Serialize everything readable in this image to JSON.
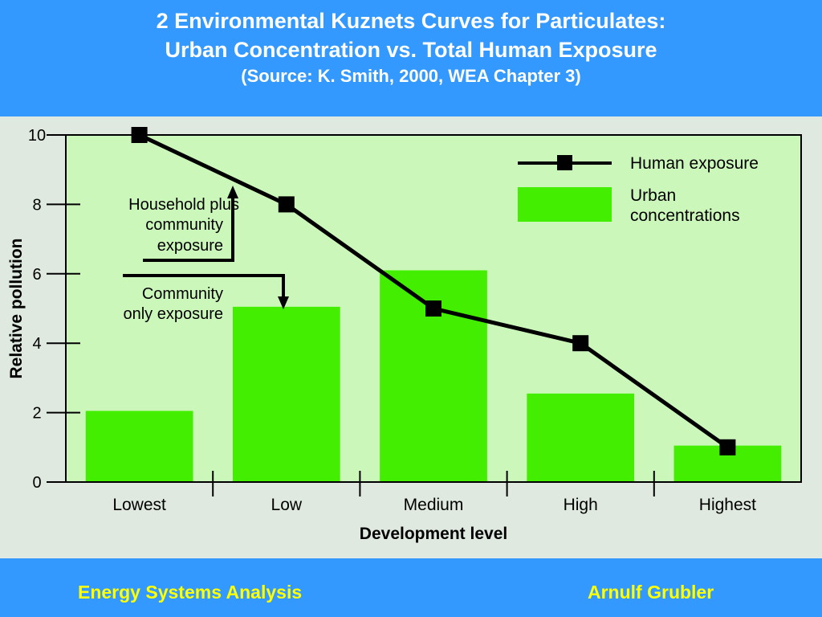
{
  "header": {
    "title_line1": "2 Environmental Kuznets Curves for Particulates:",
    "title_line2": "Urban Concentration vs. Total Human Exposure",
    "source": "(Source: K. Smith, 2000, WEA Chapter 3)"
  },
  "footer": {
    "left": "Energy Systems Analysis",
    "right": "Arnulf Grubler"
  },
  "colors": {
    "header_bg": "#3399ff",
    "plot_bg": "#ccf7bb",
    "bar_fill": "#44ee00",
    "line": "#000000",
    "footer_text": "#ffff00"
  },
  "chart_data": {
    "type": "bar",
    "categories": [
      "Lowest",
      "Low",
      "Medium",
      "High",
      "Highest"
    ],
    "series": [
      {
        "name": "Urban concentrations",
        "type": "bar",
        "values": [
          2.05,
          5.05,
          6.1,
          2.55,
          1.05
        ]
      },
      {
        "name": "Human exposure",
        "type": "line",
        "values": [
          10,
          8,
          5,
          4,
          1
        ]
      }
    ],
    "xlabel": "Development level",
    "ylabel": "Relative pollution",
    "ylim": [
      0,
      10
    ],
    "yticks": [
      "0",
      "2",
      "4",
      "6",
      "8",
      "10"
    ],
    "grid": false,
    "legend": {
      "placement": "top-right",
      "line_label": "Human exposure",
      "bar_label_line1": "Urban",
      "bar_label_line2": "concentrations"
    },
    "annotations": {
      "household_line1": "Household plus",
      "household_line2": "community",
      "household_line3": "exposure",
      "community_line1": "Community",
      "community_line2": "only exposure"
    }
  }
}
